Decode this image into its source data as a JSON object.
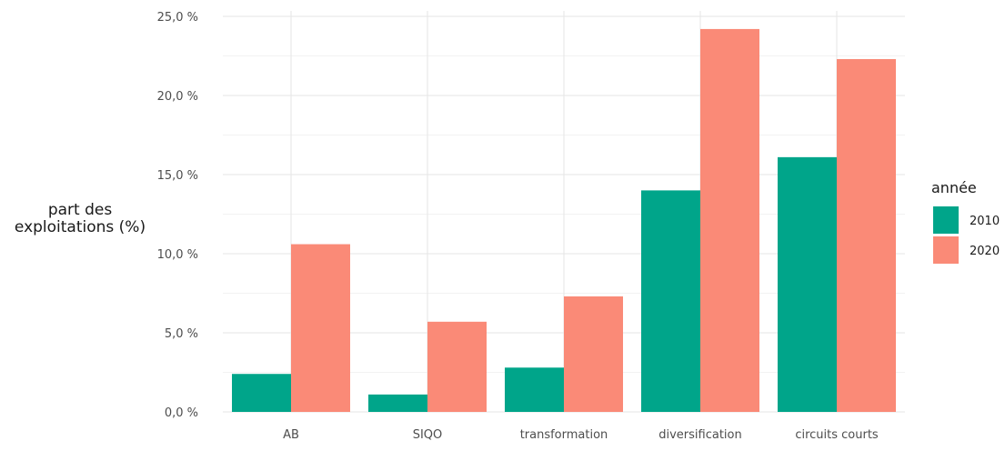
{
  "chart_data": {
    "type": "bar",
    "title": "",
    "xlabel": "",
    "ylabel": "part des\nexploitations (%)",
    "categories": [
      "AB",
      "SIQO",
      "transformation",
      "diversification",
      "circuits courts"
    ],
    "series": [
      {
        "name": "2010",
        "color": "#00a58a",
        "values": [
          2.4,
          1.1,
          2.8,
          14.0,
          16.1
        ]
      },
      {
        "name": "2020",
        "color": "#fa8a77",
        "values": [
          10.6,
          5.7,
          7.3,
          24.2,
          22.3
        ]
      }
    ],
    "ylim": [
      0,
      25
    ],
    "yticks": [
      0,
      5,
      10,
      15,
      20,
      25
    ],
    "ytick_labels": [
      "0,0 %",
      "5,0 %",
      "10,0 %",
      "15,0 %",
      "20,0 %",
      "25,0 %"
    ],
    "legend": {
      "title": "année",
      "placement": "right"
    },
    "grid": true
  }
}
